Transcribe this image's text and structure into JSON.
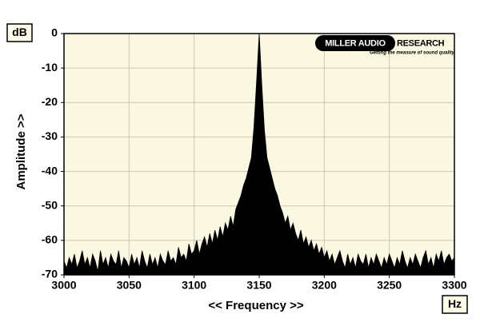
{
  "chart_data": {
    "type": "area",
    "y_unit": "dB",
    "x_unit": "Hz",
    "y_label": "Amplitude >>",
    "x_label": "<< Frequency >>",
    "logo_left": "MILLER AUDIO",
    "logo_right": "RESEARCH",
    "logo_tagline": "Getting the measure of sound quality",
    "color": "#000000",
    "background": "#fbf8e2",
    "grid": true,
    "xlim": [
      3000,
      3300
    ],
    "ylim": [
      -70,
      0
    ],
    "xticks": [
      3000,
      3050,
      3100,
      3150,
      3200,
      3250,
      3300
    ],
    "yticks": [
      0,
      -10,
      -20,
      -30,
      -40,
      -50,
      -60,
      -70
    ],
    "x": [
      3000,
      3002,
      3004,
      3006,
      3008,
      3010,
      3012,
      3014,
      3016,
      3018,
      3020,
      3022,
      3024,
      3026,
      3028,
      3030,
      3032,
      3034,
      3036,
      3038,
      3040,
      3042,
      3044,
      3046,
      3048,
      3050,
      3052,
      3054,
      3056,
      3058,
      3060,
      3062,
      3064,
      3066,
      3068,
      3070,
      3072,
      3074,
      3076,
      3078,
      3080,
      3082,
      3084,
      3086,
      3088,
      3090,
      3092,
      3094,
      3096,
      3098,
      3100,
      3102,
      3104,
      3106,
      3108,
      3110,
      3112,
      3114,
      3116,
      3118,
      3120,
      3122,
      3124,
      3126,
      3128,
      3130,
      3132,
      3134,
      3136,
      3138,
      3140,
      3142,
      3144,
      3146,
      3148,
      3150,
      3152,
      3154,
      3156,
      3158,
      3160,
      3162,
      3164,
      3166,
      3168,
      3170,
      3172,
      3174,
      3176,
      3178,
      3180,
      3182,
      3184,
      3186,
      3188,
      3190,
      3192,
      3194,
      3196,
      3198,
      3200,
      3202,
      3204,
      3206,
      3208,
      3210,
      3212,
      3214,
      3216,
      3218,
      3220,
      3222,
      3224,
      3226,
      3228,
      3230,
      3232,
      3234,
      3236,
      3238,
      3240,
      3242,
      3244,
      3246,
      3248,
      3250,
      3252,
      3254,
      3256,
      3258,
      3260,
      3262,
      3264,
      3266,
      3268,
      3270,
      3272,
      3274,
      3276,
      3278,
      3280,
      3282,
      3284,
      3286,
      3288,
      3290,
      3292,
      3294,
      3296,
      3298,
      3300
    ],
    "values": [
      -66,
      -68,
      -65,
      -67,
      -64,
      -68,
      -66,
      -63,
      -67,
      -65,
      -68,
      -64,
      -66,
      -69,
      -63,
      -67,
      -65,
      -68,
      -64,
      -66,
      -67,
      -63,
      -68,
      -65,
      -66,
      -68,
      -64,
      -67,
      -65,
      -68,
      -63,
      -66,
      -68,
      -64,
      -67,
      -65,
      -68,
      -64,
      -66,
      -67,
      -63,
      -66,
      -65,
      -67,
      -62,
      -65,
      -64,
      -66,
      -61,
      -64,
      -63,
      -60,
      -64,
      -61,
      -59,
      -62,
      -58,
      -61,
      -57,
      -60,
      -56,
      -59,
      -55,
      -57,
      -53,
      -56,
      -51,
      -49,
      -47,
      -44,
      -42,
      -39,
      -36,
      -27,
      -14,
      0,
      -15,
      -28,
      -36,
      -39,
      -42,
      -45,
      -47,
      -50,
      -52,
      -55,
      -53,
      -57,
      -55,
      -58,
      -60,
      -57,
      -61,
      -59,
      -62,
      -60,
      -63,
      -61,
      -64,
      -62,
      -65,
      -63,
      -66,
      -64,
      -67,
      -65,
      -63,
      -66,
      -68,
      -64,
      -67,
      -65,
      -68,
      -64,
      -66,
      -67,
      -64,
      -68,
      -65,
      -67,
      -64,
      -66,
      -68,
      -65,
      -67,
      -64,
      -66,
      -68,
      -65,
      -67,
      -63,
      -66,
      -68,
      -65,
      -67,
      -64,
      -66,
      -68,
      -65,
      -63,
      -67,
      -65,
      -68,
      -64,
      -66,
      -63,
      -67,
      -65,
      -64,
      -66,
      -65
    ]
  }
}
